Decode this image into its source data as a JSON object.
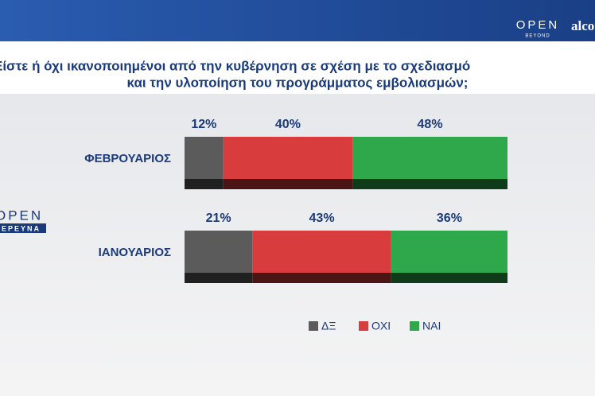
{
  "branding": {
    "top_logo": "OPEN",
    "top_logo_sub": "BEYOND",
    "partner": "alco",
    "side_logo": "OPEN",
    "side_logo_sub": "ΕΡΕΥΝΑ"
  },
  "chart_data": {
    "type": "stacked-bar-horizontal",
    "title": [
      "Είστε ή όχι ικανοποιημένοι από την κυβέρνηση σε σχέση με το σχεδιασμό",
      "και την υλοποίηση του προγράμματος εμβολιασμών;"
    ],
    "categories": [
      "ΦΕΒΡΟΥΑΡΙΟΣ",
      "ΙΑΝΟΥΑΡΙΟΣ"
    ],
    "xlim": [
      0,
      100
    ],
    "series": [
      {
        "name": "ΔΞ",
        "color": "#5b5b5b",
        "values": [
          12,
          21
        ],
        "value_labels": [
          "12%",
          "21%"
        ]
      },
      {
        "name": "ΟΧΙ",
        "color": "#d83c3c",
        "values": [
          40,
          43
        ],
        "value_labels": [
          "40%",
          "43%"
        ]
      },
      {
        "name": "ΝΑΙ",
        "color": "#2fa84b",
        "values": [
          48,
          36
        ],
        "value_labels": [
          "48%",
          "36%"
        ]
      }
    ],
    "legend": "bottom"
  }
}
